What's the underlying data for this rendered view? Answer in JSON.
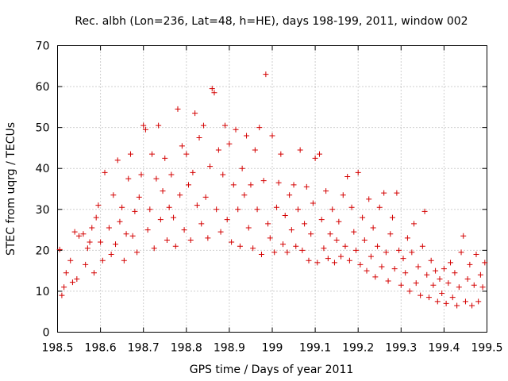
{
  "chart_data": {
    "type": "scatter",
    "title": "Rec. albh (Lon=236, Lat=48, h=HE), days 198-199, 2011, window 002",
    "xlabel": "GPS time / Days of year 2011",
    "ylabel": "STEC from uqrg / TECUs",
    "xlim": [
      198.5,
      199.5
    ],
    "ylim": [
      0,
      70
    ],
    "xticks": [
      "198.5",
      "198.6",
      "198.7",
      "198.8",
      "198.9",
      "199",
      "199.1",
      "199.2",
      "199.3",
      "199.4",
      "199.5"
    ],
    "yticks": [
      "0",
      "10",
      "20",
      "30",
      "40",
      "50",
      "60",
      "70"
    ],
    "grid": true,
    "marker": "plus",
    "color": "#d40000",
    "series": [
      {
        "points": [
          [
            198.505,
            20.2
          ],
          [
            198.51,
            9.0
          ],
          [
            198.515,
            11.0
          ],
          [
            198.52,
            14.5
          ],
          [
            198.53,
            17.5
          ],
          [
            198.535,
            12.2
          ],
          [
            198.54,
            24.5
          ],
          [
            198.545,
            13.0
          ],
          [
            198.55,
            23.5
          ],
          [
            198.56,
            24.0
          ],
          [
            198.565,
            16.5
          ],
          [
            198.57,
            20.5
          ],
          [
            198.575,
            22.0
          ],
          [
            198.58,
            25.5
          ],
          [
            198.585,
            14.5
          ],
          [
            198.59,
            28.0
          ],
          [
            198.595,
            31.0
          ],
          [
            198.6,
            22.0
          ],
          [
            198.605,
            17.5
          ],
          [
            198.61,
            39.0
          ],
          [
            198.62,
            25.5
          ],
          [
            198.625,
            19.0
          ],
          [
            198.63,
            33.5
          ],
          [
            198.635,
            21.5
          ],
          [
            198.64,
            42.0
          ],
          [
            198.645,
            27.0
          ],
          [
            198.65,
            30.5
          ],
          [
            198.655,
            17.5
          ],
          [
            198.66,
            24.0
          ],
          [
            198.665,
            37.5
          ],
          [
            198.67,
            43.5
          ],
          [
            198.675,
            23.5
          ],
          [
            198.68,
            29.5
          ],
          [
            198.685,
            19.5
          ],
          [
            198.69,
            33.0
          ],
          [
            198.695,
            38.5
          ],
          [
            198.7,
            50.5
          ],
          [
            198.705,
            49.5
          ],
          [
            198.71,
            25.0
          ],
          [
            198.715,
            30.0
          ],
          [
            198.72,
            43.5
          ],
          [
            198.725,
            20.5
          ],
          [
            198.73,
            37.5
          ],
          [
            198.735,
            50.5
          ],
          [
            198.74,
            27.5
          ],
          [
            198.745,
            34.5
          ],
          [
            198.75,
            42.5
          ],
          [
            198.755,
            22.5
          ],
          [
            198.76,
            30.5
          ],
          [
            198.765,
            38.5
          ],
          [
            198.77,
            28.0
          ],
          [
            198.775,
            21.0
          ],
          [
            198.78,
            54.5
          ],
          [
            198.785,
            33.5
          ],
          [
            198.79,
            45.5
          ],
          [
            198.795,
            25.0
          ],
          [
            198.8,
            43.5
          ],
          [
            198.805,
            36.0
          ],
          [
            198.81,
            22.5
          ],
          [
            198.815,
            39.0
          ],
          [
            198.82,
            53.5
          ],
          [
            198.825,
            31.0
          ],
          [
            198.83,
            47.5
          ],
          [
            198.835,
            26.5
          ],
          [
            198.84,
            50.5
          ],
          [
            198.845,
            33.0
          ],
          [
            198.85,
            23.0
          ],
          [
            198.855,
            40.5
          ],
          [
            198.86,
            59.5
          ],
          [
            198.865,
            58.5
          ],
          [
            198.87,
            30.0
          ],
          [
            198.875,
            44.5
          ],
          [
            198.88,
            24.5
          ],
          [
            198.885,
            38.5
          ],
          [
            198.89,
            50.5
          ],
          [
            198.895,
            27.5
          ],
          [
            198.9,
            46.0
          ],
          [
            198.905,
            22.0
          ],
          [
            198.91,
            36.0
          ],
          [
            198.915,
            49.5
          ],
          [
            198.92,
            30.0
          ],
          [
            198.925,
            21.0
          ],
          [
            198.93,
            40.0
          ],
          [
            198.935,
            33.5
          ],
          [
            198.94,
            48.0
          ],
          [
            198.945,
            25.5
          ],
          [
            198.95,
            36.0
          ],
          [
            198.955,
            20.5
          ],
          [
            198.96,
            44.5
          ],
          [
            198.965,
            30.0
          ],
          [
            198.97,
            50.0
          ],
          [
            198.975,
            19.0
          ],
          [
            198.98,
            37.0
          ],
          [
            198.985,
            63.0
          ],
          [
            198.99,
            26.5
          ],
          [
            198.995,
            23.0
          ],
          [
            199.0,
            48.0
          ],
          [
            199.005,
            19.5
          ],
          [
            199.01,
            30.5
          ],
          [
            199.015,
            36.5
          ],
          [
            199.02,
            43.5
          ],
          [
            199.025,
            21.5
          ],
          [
            199.03,
            28.5
          ],
          [
            199.035,
            19.5
          ],
          [
            199.04,
            33.5
          ],
          [
            199.045,
            25.0
          ],
          [
            199.05,
            36.0
          ],
          [
            199.055,
            21.0
          ],
          [
            199.06,
            30.0
          ],
          [
            199.065,
            44.5
          ],
          [
            199.07,
            20.0
          ],
          [
            199.075,
            26.5
          ],
          [
            199.08,
            35.5
          ],
          [
            199.085,
            17.5
          ],
          [
            199.09,
            24.0
          ],
          [
            199.095,
            31.5
          ],
          [
            199.1,
            42.5
          ],
          [
            199.105,
            17.0
          ],
          [
            199.11,
            43.5
          ],
          [
            199.115,
            27.5
          ],
          [
            199.12,
            20.5
          ],
          [
            199.125,
            34.5
          ],
          [
            199.13,
            18.0
          ],
          [
            199.135,
            24.0
          ],
          [
            199.14,
            30.0
          ],
          [
            199.145,
            17.0
          ],
          [
            199.15,
            22.5
          ],
          [
            199.155,
            27.0
          ],
          [
            199.16,
            18.5
          ],
          [
            199.165,
            33.5
          ],
          [
            199.17,
            21.0
          ],
          [
            199.175,
            38.0
          ],
          [
            199.18,
            17.5
          ],
          [
            199.185,
            30.5
          ],
          [
            199.19,
            24.5
          ],
          [
            199.195,
            20.0
          ],
          [
            199.2,
            39.0
          ],
          [
            199.205,
            16.5
          ],
          [
            199.21,
            28.0
          ],
          [
            199.215,
            22.5
          ],
          [
            199.22,
            15.0
          ],
          [
            199.225,
            32.5
          ],
          [
            199.23,
            18.5
          ],
          [
            199.235,
            25.5
          ],
          [
            199.24,
            13.5
          ],
          [
            199.245,
            21.0
          ],
          [
            199.25,
            30.5
          ],
          [
            199.255,
            16.0
          ],
          [
            199.26,
            34.0
          ],
          [
            199.265,
            19.5
          ],
          [
            199.27,
            12.5
          ],
          [
            199.275,
            24.0
          ],
          [
            199.28,
            28.0
          ],
          [
            199.285,
            15.5
          ],
          [
            199.29,
            34.0
          ],
          [
            199.295,
            20.0
          ],
          [
            199.3,
            11.5
          ],
          [
            199.305,
            18.0
          ],
          [
            199.31,
            14.5
          ],
          [
            199.315,
            23.0
          ],
          [
            199.32,
            10.0
          ],
          [
            199.325,
            19.5
          ],
          [
            199.33,
            26.5
          ],
          [
            199.335,
            12.0
          ],
          [
            199.34,
            16.0
          ],
          [
            199.345,
            9.0
          ],
          [
            199.35,
            21.0
          ],
          [
            199.355,
            29.5
          ],
          [
            199.36,
            14.0
          ],
          [
            199.365,
            8.5
          ],
          [
            199.37,
            17.5
          ],
          [
            199.375,
            11.5
          ],
          [
            199.38,
            15.0
          ],
          [
            199.385,
            7.5
          ],
          [
            199.39,
            13.0
          ],
          [
            199.395,
            9.5
          ],
          [
            199.4,
            15.5
          ],
          [
            199.405,
            7.0
          ],
          [
            199.41,
            12.0
          ],
          [
            199.415,
            17.0
          ],
          [
            199.42,
            8.5
          ],
          [
            199.425,
            14.5
          ],
          [
            199.43,
            6.5
          ],
          [
            199.435,
            11.0
          ],
          [
            199.44,
            19.5
          ],
          [
            199.445,
            23.5
          ],
          [
            199.45,
            7.5
          ],
          [
            199.455,
            13.0
          ],
          [
            199.46,
            16.5
          ],
          [
            199.465,
            6.5
          ],
          [
            199.47,
            11.5
          ],
          [
            199.475,
            19.0
          ],
          [
            199.48,
            7.5
          ],
          [
            199.485,
            14.0
          ],
          [
            199.49,
            11.0
          ],
          [
            199.495,
            17.0
          ]
        ]
      }
    ]
  }
}
